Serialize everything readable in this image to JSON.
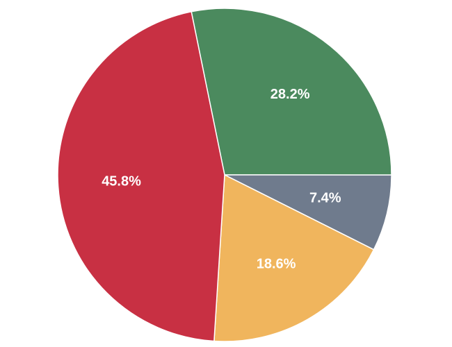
{
  "chart_data": {
    "type": "pie",
    "values": [
      28.2,
      7.4,
      18.6,
      45.8
    ],
    "value_labels": [
      "28.2%",
      "7.4%",
      "18.6%",
      "45.8%"
    ],
    "colors": [
      "#4b8a5e",
      "#6f7b8d",
      "#f0b55d",
      "#c83043"
    ]
  }
}
